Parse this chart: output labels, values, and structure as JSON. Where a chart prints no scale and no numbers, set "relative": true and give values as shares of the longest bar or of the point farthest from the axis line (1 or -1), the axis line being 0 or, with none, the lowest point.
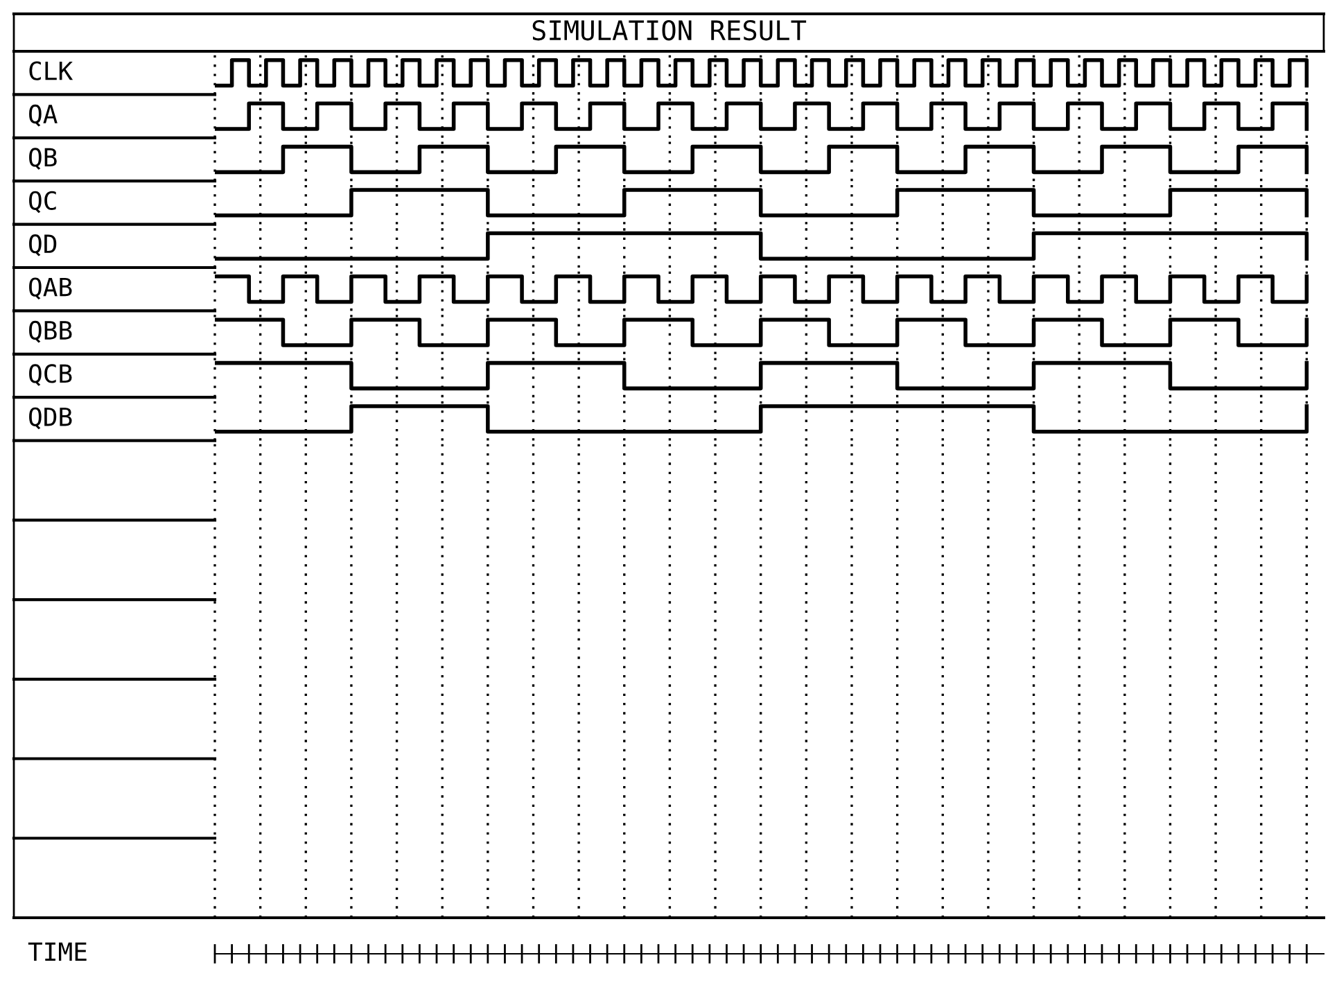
{
  "chart_data": [
    {
      "type": "step",
      "title": "SIMULATION RESULT",
      "ylabel": "CLK",
      "relative": true,
      "grid": true,
      "categories": [
        null,
        null,
        null,
        null,
        null,
        null,
        null,
        null,
        null,
        null,
        null,
        null,
        null,
        null,
        null,
        null,
        null,
        null,
        null,
        null,
        null,
        null,
        null,
        null,
        null,
        null,
        null,
        null,
        null,
        null,
        null,
        null,
        null,
        null,
        null,
        null,
        null,
        null,
        null,
        null,
        null,
        null,
        null,
        null,
        null,
        null,
        null,
        null,
        null,
        null,
        null,
        null,
        null,
        null,
        null,
        null,
        null,
        null,
        null,
        null,
        null,
        null,
        null,
        null,
        null
      ],
      "series": [
        {
          "color": "#000000",
          "values": [
            0,
            1,
            0,
            1,
            0,
            1,
            0,
            1,
            0,
            1,
            0,
            1,
            0,
            1,
            0,
            1,
            0,
            1,
            0,
            1,
            0,
            1,
            0,
            1,
            0,
            1,
            0,
            1,
            0,
            1,
            0,
            1,
            0,
            1,
            0,
            1,
            0,
            1,
            0,
            1,
            0,
            1,
            0,
            1,
            0,
            1,
            0,
            1,
            0,
            1,
            0,
            1,
            0,
            1,
            0,
            1,
            0,
            1,
            0,
            1,
            0,
            1,
            0,
            1,
            0
          ]
        }
      ]
    },
    {
      "type": "step",
      "ylabel": "QA",
      "relative": true,
      "grid": true,
      "categories": [
        null,
        null,
        null,
        null,
        null,
        null,
        null,
        null,
        null,
        null,
        null,
        null,
        null,
        null,
        null,
        null,
        null,
        null,
        null,
        null,
        null,
        null,
        null,
        null,
        null,
        null,
        null,
        null,
        null,
        null,
        null,
        null,
        null,
        null,
        null,
        null,
        null,
        null,
        null,
        null,
        null,
        null,
        null,
        null,
        null,
        null,
        null,
        null,
        null,
        null,
        null,
        null,
        null,
        null,
        null,
        null,
        null,
        null,
        null,
        null,
        null,
        null,
        null,
        null,
        null
      ],
      "series": [
        {
          "color": "#000000",
          "values": [
            0,
            0,
            1,
            1,
            0,
            0,
            1,
            1,
            0,
            0,
            1,
            1,
            0,
            0,
            1,
            1,
            0,
            0,
            1,
            1,
            0,
            0,
            1,
            1,
            0,
            0,
            1,
            1,
            0,
            0,
            1,
            1,
            0,
            0,
            1,
            1,
            0,
            0,
            1,
            1,
            0,
            0,
            1,
            1,
            0,
            0,
            1,
            1,
            0,
            0,
            1,
            1,
            0,
            0,
            1,
            1,
            0,
            0,
            1,
            1,
            0,
            0,
            1,
            1,
            0
          ]
        }
      ]
    },
    {
      "type": "step",
      "ylabel": "QB",
      "relative": true,
      "grid": true,
      "categories": [
        null,
        null,
        null,
        null,
        null,
        null,
        null,
        null,
        null,
        null,
        null,
        null,
        null,
        null,
        null,
        null,
        null,
        null,
        null,
        null,
        null,
        null,
        null,
        null,
        null,
        null,
        null,
        null,
        null,
        null,
        null,
        null,
        null,
        null,
        null,
        null,
        null,
        null,
        null,
        null,
        null,
        null,
        null,
        null,
        null,
        null,
        null,
        null,
        null,
        null,
        null,
        null,
        null,
        null,
        null,
        null,
        null,
        null,
        null,
        null,
        null,
        null,
        null,
        null,
        null
      ],
      "series": [
        {
          "color": "#000000",
          "values": [
            0,
            0,
            0,
            0,
            1,
            1,
            1,
            1,
            0,
            0,
            0,
            0,
            1,
            1,
            1,
            1,
            0,
            0,
            0,
            0,
            1,
            1,
            1,
            1,
            0,
            0,
            0,
            0,
            1,
            1,
            1,
            1,
            0,
            0,
            0,
            0,
            1,
            1,
            1,
            1,
            0,
            0,
            0,
            0,
            1,
            1,
            1,
            1,
            0,
            0,
            0,
            0,
            1,
            1,
            1,
            1,
            0,
            0,
            0,
            0,
            1,
            1,
            1,
            1,
            0
          ]
        }
      ]
    },
    {
      "type": "step",
      "ylabel": "QC",
      "relative": true,
      "grid": true,
      "categories": [
        null,
        null,
        null,
        null,
        null,
        null,
        null,
        null,
        null,
        null,
        null,
        null,
        null,
        null,
        null,
        null,
        null,
        null,
        null,
        null,
        null,
        null,
        null,
        null,
        null,
        null,
        null,
        null,
        null,
        null,
        null,
        null,
        null,
        null,
        null,
        null,
        null,
        null,
        null,
        null,
        null,
        null,
        null,
        null,
        null,
        null,
        null,
        null,
        null,
        null,
        null,
        null,
        null,
        null,
        null,
        null,
        null,
        null,
        null,
        null,
        null,
        null,
        null,
        null,
        null
      ],
      "series": [
        {
          "color": "#000000",
          "values": [
            0,
            0,
            0,
            0,
            0,
            0,
            0,
            0,
            1,
            1,
            1,
            1,
            1,
            1,
            1,
            1,
            0,
            0,
            0,
            0,
            0,
            0,
            0,
            0,
            1,
            1,
            1,
            1,
            1,
            1,
            1,
            1,
            0,
            0,
            0,
            0,
            0,
            0,
            0,
            0,
            1,
            1,
            1,
            1,
            1,
            1,
            1,
            1,
            0,
            0,
            0,
            0,
            0,
            0,
            0,
            0,
            1,
            1,
            1,
            1,
            1,
            1,
            1,
            1,
            0
          ]
        }
      ]
    },
    {
      "type": "step",
      "ylabel": "QD",
      "relative": true,
      "grid": true,
      "categories": [
        null,
        null,
        null,
        null,
        null,
        null,
        null,
        null,
        null,
        null,
        null,
        null,
        null,
        null,
        null,
        null,
        null,
        null,
        null,
        null,
        null,
        null,
        null,
        null,
        null,
        null,
        null,
        null,
        null,
        null,
        null,
        null,
        null,
        null,
        null,
        null,
        null,
        null,
        null,
        null,
        null,
        null,
        null,
        null,
        null,
        null,
        null,
        null,
        null,
        null,
        null,
        null,
        null,
        null,
        null,
        null,
        null,
        null,
        null,
        null,
        null,
        null,
        null,
        null,
        null
      ],
      "series": [
        {
          "color": "#000000",
          "values": [
            0,
            0,
            0,
            0,
            0,
            0,
            0,
            0,
            0,
            0,
            0,
            0,
            0,
            0,
            0,
            0,
            1,
            1,
            1,
            1,
            1,
            1,
            1,
            1,
            1,
            1,
            1,
            1,
            1,
            1,
            1,
            1,
            0,
            0,
            0,
            0,
            0,
            0,
            0,
            0,
            0,
            0,
            0,
            0,
            0,
            0,
            0,
            0,
            1,
            1,
            1,
            1,
            1,
            1,
            1,
            1,
            1,
            1,
            1,
            1,
            1,
            1,
            1,
            1,
            0
          ]
        }
      ]
    },
    {
      "type": "step",
      "ylabel": "QAB",
      "relative": true,
      "grid": true,
      "categories": [
        null,
        null,
        null,
        null,
        null,
        null,
        null,
        null,
        null,
        null,
        null,
        null,
        null,
        null,
        null,
        null,
        null,
        null,
        null,
        null,
        null,
        null,
        null,
        null,
        null,
        null,
        null,
        null,
        null,
        null,
        null,
        null,
        null,
        null,
        null,
        null,
        null,
        null,
        null,
        null,
        null,
        null,
        null,
        null,
        null,
        null,
        null,
        null,
        null,
        null,
        null,
        null,
        null,
        null,
        null,
        null,
        null,
        null,
        null,
        null,
        null,
        null,
        null,
        null,
        null
      ],
      "series": [
        {
          "color": "#000000",
          "values": [
            1,
            1,
            0,
            0,
            1,
            1,
            0,
            0,
            1,
            1,
            0,
            0,
            1,
            1,
            0,
            0,
            1,
            1,
            0,
            0,
            1,
            1,
            0,
            0,
            1,
            1,
            0,
            0,
            1,
            1,
            0,
            0,
            1,
            1,
            0,
            0,
            1,
            1,
            0,
            0,
            1,
            1,
            0,
            0,
            1,
            1,
            0,
            0,
            1,
            1,
            0,
            0,
            1,
            1,
            0,
            0,
            1,
            1,
            0,
            0,
            1,
            1,
            0,
            0,
            1
          ]
        }
      ]
    },
    {
      "type": "step",
      "ylabel": "QBB",
      "relative": true,
      "grid": true,
      "categories": [
        null,
        null,
        null,
        null,
        null,
        null,
        null,
        null,
        null,
        null,
        null,
        null,
        null,
        null,
        null,
        null,
        null,
        null,
        null,
        null,
        null,
        null,
        null,
        null,
        null,
        null,
        null,
        null,
        null,
        null,
        null,
        null,
        null,
        null,
        null,
        null,
        null,
        null,
        null,
        null,
        null,
        null,
        null,
        null,
        null,
        null,
        null,
        null,
        null,
        null,
        null,
        null,
        null,
        null,
        null,
        null,
        null,
        null,
        null,
        null,
        null,
        null,
        null,
        null,
        null
      ],
      "series": [
        {
          "color": "#000000",
          "values": [
            1,
            1,
            1,
            1,
            0,
            0,
            0,
            0,
            1,
            1,
            1,
            1,
            0,
            0,
            0,
            0,
            1,
            1,
            1,
            1,
            0,
            0,
            0,
            0,
            1,
            1,
            1,
            1,
            0,
            0,
            0,
            0,
            1,
            1,
            1,
            1,
            0,
            0,
            0,
            0,
            1,
            1,
            1,
            1,
            0,
            0,
            0,
            0,
            1,
            1,
            1,
            1,
            0,
            0,
            0,
            0,
            1,
            1,
            1,
            1,
            0,
            0,
            0,
            0,
            1
          ]
        }
      ]
    },
    {
      "type": "step",
      "ylabel": "QCB",
      "relative": true,
      "grid": true,
      "categories": [
        null,
        null,
        null,
        null,
        null,
        null,
        null,
        null,
        null,
        null,
        null,
        null,
        null,
        null,
        null,
        null,
        null,
        null,
        null,
        null,
        null,
        null,
        null,
        null,
        null,
        null,
        null,
        null,
        null,
        null,
        null,
        null,
        null,
        null,
        null,
        null,
        null,
        null,
        null,
        null,
        null,
        null,
        null,
        null,
        null,
        null,
        null,
        null,
        null,
        null,
        null,
        null,
        null,
        null,
        null,
        null,
        null,
        null,
        null,
        null,
        null,
        null,
        null,
        null,
        null
      ],
      "series": [
        {
          "color": "#000000",
          "values": [
            1,
            1,
            1,
            1,
            1,
            1,
            1,
            1,
            0,
            0,
            0,
            0,
            0,
            0,
            0,
            0,
            1,
            1,
            1,
            1,
            1,
            1,
            1,
            1,
            0,
            0,
            0,
            0,
            0,
            0,
            0,
            0,
            1,
            1,
            1,
            1,
            1,
            1,
            1,
            1,
            0,
            0,
            0,
            0,
            0,
            0,
            0,
            0,
            1,
            1,
            1,
            1,
            1,
            1,
            1,
            1,
            0,
            0,
            0,
            0,
            0,
            0,
            0,
            0,
            1
          ]
        }
      ]
    },
    {
      "type": "step",
      "ylabel": "QDB",
      "relative": true,
      "grid": true,
      "categories": [
        null,
        null,
        null,
        null,
        null,
        null,
        null,
        null,
        null,
        null,
        null,
        null,
        null,
        null,
        null,
        null,
        null,
        null,
        null,
        null,
        null,
        null,
        null,
        null,
        null,
        null,
        null,
        null,
        null,
        null,
        null,
        null,
        null,
        null,
        null,
        null,
        null,
        null,
        null,
        null,
        null,
        null,
        null,
        null,
        null,
        null,
        null,
        null,
        null,
        null,
        null,
        null,
        null,
        null,
        null,
        null,
        null,
        null,
        null,
        null,
        null,
        null,
        null,
        null,
        null
      ],
      "series": [
        {
          "color": "#000000",
          "values": [
            0,
            0,
            0,
            0,
            0,
            0,
            0,
            0,
            1,
            1,
            1,
            1,
            1,
            1,
            1,
            1,
            0,
            0,
            0,
            0,
            0,
            0,
            0,
            0,
            0,
            0,
            0,
            0,
            0,
            0,
            0,
            0,
            1,
            1,
            1,
            1,
            1,
            1,
            1,
            1,
            1,
            1,
            1,
            1,
            1,
            1,
            1,
            1,
            0,
            0,
            0,
            0,
            0,
            0,
            0,
            0,
            0,
            0,
            0,
            0,
            0,
            0,
            0,
            0,
            1
          ]
        }
      ]
    },
    {
      "type": "other"
    },
    {
      "type": "other",
      "xlabel": "TIME",
      "categories": [
        null,
        null,
        null,
        null,
        null,
        null,
        null,
        null,
        null,
        null,
        null,
        null,
        null,
        null,
        null,
        null,
        null,
        null,
        null,
        null,
        null,
        null,
        null,
        null,
        null,
        null,
        null,
        null,
        null,
        null,
        null,
        null,
        null,
        null,
        null,
        null,
        null,
        null,
        null,
        null,
        null,
        null,
        null,
        null,
        null,
        null,
        null,
        null,
        null,
        null,
        null,
        null,
        null,
        null,
        null,
        null,
        null,
        null,
        null,
        null,
        null,
        null,
        null,
        null,
        null
      ]
    }
  ]
}
